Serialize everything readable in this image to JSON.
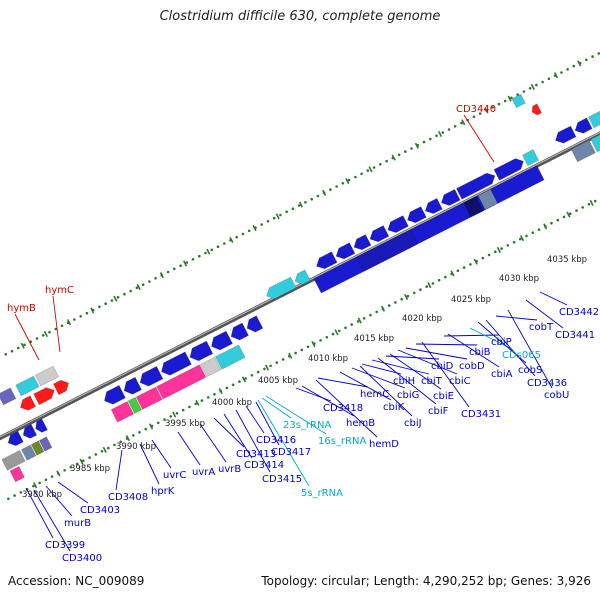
{
  "title": "Clostridium difficile 630, complete genome",
  "footer": {
    "accession": "Accession: NC_009089",
    "summary": "Topology: circular; Length: 4,290,252 bp; Genes: 3,926"
  },
  "colors": {
    "background": "#ffffff",
    "backbone": "#777777",
    "tick_marks": "#2a7a2a",
    "gene_label": "#0000cc",
    "rna_label": "#00aacc",
    "highlight_label": "#cc0000",
    "gene_forward": "#1a1ad0",
    "gene_reverse": "#1a1ad0",
    "rna_feature": "#33ccdd",
    "hypothetical": "#cccccc",
    "pink": "#ff3399",
    "red": "#ff1a1a",
    "orange": "#ff9900",
    "slate": "#6f86aa",
    "purple": "#6a66bb",
    "olive": "#6d8a2a"
  },
  "scale_ticks": [
    "3980 kbp",
    "3985 kbp",
    "3990 kbp",
    "3995 kbp",
    "4000 kbp",
    "4005 kbp",
    "4010 kbp",
    "4015 kbp",
    "4020 kbp",
    "4025 kbp",
    "4030 kbp",
    "4035 kbp"
  ],
  "gene_labels": [
    {
      "text": "CD3440",
      "kind": "highlight"
    },
    {
      "text": "hymB",
      "kind": "highlight"
    },
    {
      "text": "hymC",
      "kind": "highlight"
    },
    {
      "text": "CD3399",
      "kind": "gene"
    },
    {
      "text": "CD3400",
      "kind": "gene"
    },
    {
      "text": "murB",
      "kind": "gene"
    },
    {
      "text": "CD3403",
      "kind": "gene"
    },
    {
      "text": "CD3408",
      "kind": "gene"
    },
    {
      "text": "hprK",
      "kind": "gene"
    },
    {
      "text": "uvrC",
      "kind": "gene"
    },
    {
      "text": "uvrA",
      "kind": "gene"
    },
    {
      "text": "uvrB",
      "kind": "gene"
    },
    {
      "text": "CD3413",
      "kind": "gene"
    },
    {
      "text": "CD3414",
      "kind": "gene"
    },
    {
      "text": "CD3415",
      "kind": "gene"
    },
    {
      "text": "CD3416",
      "kind": "gene"
    },
    {
      "text": "CD3417",
      "kind": "gene"
    },
    {
      "text": "5s_rRNA",
      "kind": "rna"
    },
    {
      "text": "23s_rRNA",
      "kind": "rna"
    },
    {
      "text": "16s_rRNA",
      "kind": "rna"
    },
    {
      "text": "CD3418",
      "kind": "gene"
    },
    {
      "text": "hemB",
      "kind": "gene"
    },
    {
      "text": "hemC",
      "kind": "gene"
    },
    {
      "text": "hemD",
      "kind": "gene"
    },
    {
      "text": "cbiK",
      "kind": "gene"
    },
    {
      "text": "cbiG",
      "kind": "gene"
    },
    {
      "text": "cbiH",
      "kind": "gene"
    },
    {
      "text": "cbiJ",
      "kind": "gene"
    },
    {
      "text": "cbiT",
      "kind": "gene"
    },
    {
      "text": "cbiF",
      "kind": "gene"
    },
    {
      "text": "cbiD",
      "kind": "gene"
    },
    {
      "text": "cbiE",
      "kind": "gene"
    },
    {
      "text": "cbiC",
      "kind": "gene"
    },
    {
      "text": "cbiB",
      "kind": "gene"
    },
    {
      "text": "cobD",
      "kind": "gene"
    },
    {
      "text": "CD3431",
      "kind": "gene"
    },
    {
      "text": "cbiA",
      "kind": "gene"
    },
    {
      "text": "cbiP",
      "kind": "gene"
    },
    {
      "text": "CDs065",
      "kind": "rna"
    },
    {
      "text": "cobS",
      "kind": "gene"
    },
    {
      "text": "CD3436",
      "kind": "gene"
    },
    {
      "text": "cobT",
      "kind": "gene"
    },
    {
      "text": "cobU",
      "kind": "gene"
    },
    {
      "text": "CD3441",
      "kind": "gene"
    },
    {
      "text": "CD3442",
      "kind": "gene"
    }
  ]
}
